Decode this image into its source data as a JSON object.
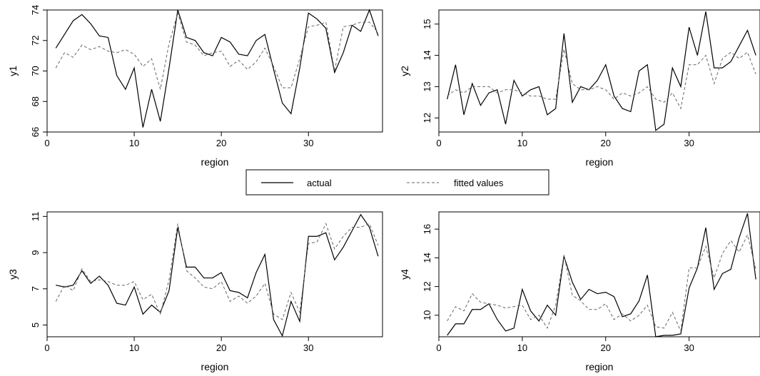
{
  "legend": {
    "actual_label": "actual",
    "fitted_label": "fitted values"
  },
  "chart_data": [
    {
      "type": "line",
      "xlabel": "region",
      "ylabel": "y1",
      "xlim": [
        0,
        38.5
      ],
      "ylim": [
        66,
        74
      ],
      "xticks": [
        0,
        10,
        20,
        30
      ],
      "yticks": [
        66,
        68,
        70,
        72,
        74
      ],
      "x": [
        1,
        2,
        3,
        4,
        5,
        6,
        7,
        8,
        9,
        10,
        11,
        12,
        13,
        14,
        15,
        16,
        17,
        18,
        19,
        20,
        21,
        22,
        23,
        24,
        25,
        26,
        27,
        28,
        29,
        30,
        31,
        32,
        33,
        34,
        35,
        36,
        37,
        38
      ],
      "series": [
        {
          "name": "actual",
          "values": [
            71.5,
            72.4,
            73.3,
            73.7,
            73.1,
            72.3,
            72.2,
            69.7,
            68.8,
            70.2,
            66.3,
            68.8,
            66.7,
            70.2,
            74.0,
            72.2,
            72.0,
            71.2,
            71.0,
            72.2,
            71.9,
            71.1,
            71.0,
            72.0,
            72.4,
            70.1,
            67.9,
            67.2,
            70.2,
            73.8,
            73.4,
            72.8,
            69.9,
            71.2,
            73.0,
            72.6,
            74.0,
            72.3
          ]
        },
        {
          "name": "fitted values",
          "values": [
            70.2,
            71.2,
            70.9,
            71.7,
            71.4,
            71.6,
            71.3,
            71.2,
            71.4,
            71.1,
            70.3,
            70.8,
            68.8,
            71.8,
            73.8,
            71.9,
            71.7,
            71.0,
            71.2,
            71.3,
            70.3,
            70.7,
            70.1,
            70.6,
            71.5,
            70.3,
            68.9,
            68.9,
            70.8,
            72.9,
            73.0,
            73.2,
            70.0,
            72.9,
            73.0,
            73.2,
            73.2,
            72.5
          ]
        }
      ]
    },
    {
      "type": "line",
      "xlabel": "region",
      "ylabel": "y2",
      "xlim": [
        0,
        38.5
      ],
      "ylim": [
        11.55,
        15.45
      ],
      "xticks": [
        0,
        10,
        20,
        30
      ],
      "yticks": [
        12,
        13,
        14,
        15
      ],
      "x": [
        1,
        2,
        3,
        4,
        5,
        6,
        7,
        8,
        9,
        10,
        11,
        12,
        13,
        14,
        15,
        16,
        17,
        18,
        19,
        20,
        21,
        22,
        23,
        24,
        25,
        26,
        27,
        28,
        29,
        30,
        31,
        32,
        33,
        34,
        35,
        36,
        37,
        38
      ],
      "series": [
        {
          "name": "actual",
          "values": [
            12.6,
            13.7,
            12.1,
            13.1,
            12.4,
            12.8,
            12.9,
            11.8,
            13.2,
            12.7,
            12.9,
            13.0,
            12.1,
            12.3,
            14.7,
            12.5,
            13.0,
            12.9,
            13.2,
            13.7,
            12.7,
            12.3,
            12.2,
            13.5,
            13.7,
            11.6,
            11.8,
            13.6,
            13.0,
            14.9,
            14.0,
            15.4,
            13.6,
            13.6,
            13.8,
            14.3,
            14.8,
            14.0
          ]
        },
        {
          "name": "fitted values",
          "values": [
            12.7,
            12.9,
            12.8,
            13.0,
            13.0,
            13.0,
            12.8,
            12.9,
            12.9,
            12.8,
            12.7,
            12.7,
            12.6,
            12.6,
            14.2,
            13.1,
            12.9,
            12.9,
            13.0,
            12.9,
            12.6,
            12.8,
            12.7,
            12.8,
            13.0,
            12.6,
            12.5,
            12.8,
            12.3,
            13.7,
            13.7,
            14.0,
            13.1,
            13.9,
            14.1,
            13.9,
            14.1,
            13.4
          ]
        }
      ]
    },
    {
      "type": "line",
      "xlabel": "region",
      "ylabel": "y3",
      "xlim": [
        0,
        38.5
      ],
      "ylim": [
        4.35,
        11.25
      ],
      "xticks": [
        0,
        10,
        20,
        30
      ],
      "yticks": [
        5,
        7,
        9,
        11
      ],
      "x": [
        1,
        2,
        3,
        4,
        5,
        6,
        7,
        8,
        9,
        10,
        11,
        12,
        13,
        14,
        15,
        16,
        17,
        18,
        19,
        20,
        21,
        22,
        23,
        24,
        25,
        26,
        27,
        28,
        29,
        30,
        31,
        32,
        33,
        34,
        35,
        36,
        37,
        38
      ],
      "series": [
        {
          "name": "actual",
          "values": [
            7.2,
            7.1,
            7.2,
            8.0,
            7.3,
            7.7,
            7.2,
            6.2,
            6.1,
            7.1,
            5.6,
            6.1,
            5.7,
            6.9,
            10.4,
            8.2,
            8.2,
            7.6,
            7.6,
            7.9,
            6.9,
            6.8,
            6.5,
            7.9,
            8.9,
            5.3,
            4.4,
            6.3,
            5.2,
            9.9,
            9.9,
            10.1,
            8.6,
            9.3,
            10.2,
            11.1,
            10.4,
            8.8
          ]
        },
        {
          "name": "fitted values",
          "values": [
            6.3,
            7.2,
            6.9,
            8.1,
            7.4,
            7.5,
            7.4,
            7.2,
            7.2,
            7.4,
            6.4,
            6.7,
            5.6,
            7.5,
            10.6,
            8.0,
            7.6,
            7.1,
            7.0,
            7.4,
            6.3,
            6.6,
            6.2,
            6.6,
            7.3,
            5.6,
            5.3,
            6.8,
            5.7,
            9.5,
            9.6,
            10.6,
            9.2,
            9.9,
            10.4,
            10.4,
            10.6,
            9.4
          ]
        }
      ]
    },
    {
      "type": "line",
      "xlabel": "region",
      "ylabel": "y4",
      "xlim": [
        0,
        38.5
      ],
      "ylim": [
        8.5,
        17.2
      ],
      "xticks": [
        0,
        10,
        20,
        30
      ],
      "yticks": [
        10,
        12,
        14,
        16
      ],
      "x": [
        1,
        2,
        3,
        4,
        5,
        6,
        7,
        8,
        9,
        10,
        11,
        12,
        13,
        14,
        15,
        16,
        17,
        18,
        19,
        20,
        21,
        22,
        23,
        24,
        25,
        26,
        27,
        28,
        29,
        30,
        31,
        32,
        33,
        34,
        35,
        36,
        37,
        38
      ],
      "series": [
        {
          "name": "actual",
          "values": [
            8.6,
            9.4,
            9.4,
            10.4,
            10.4,
            10.8,
            9.7,
            8.9,
            9.1,
            11.8,
            10.3,
            9.6,
            10.7,
            10.0,
            14.1,
            12.3,
            11.1,
            11.8,
            11.5,
            11.6,
            11.3,
            9.9,
            10.1,
            11.0,
            12.8,
            8.5,
            8.6,
            8.6,
            8.7,
            11.9,
            13.3,
            16.1,
            11.8,
            12.9,
            13.2,
            15.4,
            17.1,
            12.5
          ]
        },
        {
          "name": "fitted values",
          "values": [
            9.6,
            10.6,
            10.3,
            11.5,
            10.9,
            10.8,
            10.7,
            10.5,
            10.6,
            10.7,
            9.7,
            10.0,
            9.1,
            10.7,
            14.2,
            11.4,
            11.0,
            10.4,
            10.4,
            10.8,
            9.7,
            10.1,
            9.6,
            10.0,
            10.7,
            9.2,
            9.1,
            10.2,
            8.9,
            13.3,
            13.3,
            14.8,
            12.6,
            14.3,
            15.2,
            14.4,
            15.6,
            13.2
          ]
        }
      ]
    }
  ]
}
